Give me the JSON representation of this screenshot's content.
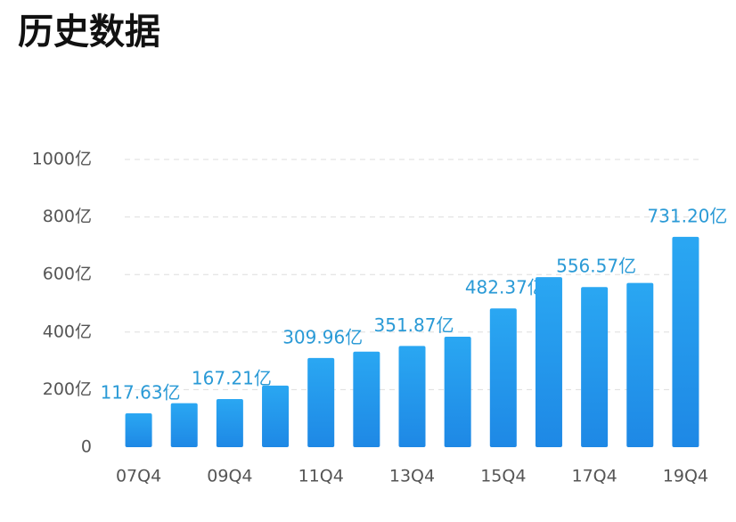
{
  "chart_data": {
    "type": "bar",
    "title": "历史数据",
    "categories": [
      "07Q4",
      null,
      "09Q4",
      null,
      "11Q4",
      null,
      "13Q4",
      null,
      "15Q4",
      null,
      "17Q4",
      null,
      "19Q4"
    ],
    "values": [
      117.63,
      153,
      167.21,
      214,
      309.96,
      332,
      351.87,
      384,
      482.37,
      591,
      556.57,
      571,
      731.2
    ],
    "value_labels": [
      "117.63亿",
      null,
      "167.21亿",
      null,
      "309.96亿",
      null,
      "351.87亿",
      null,
      "482.37亿",
      null,
      "556.57亿",
      null,
      "731.20亿"
    ],
    "color": "#2196f3",
    "ylim": [
      0,
      1000
    ],
    "yticks": [
      0,
      {
        "value": 200,
        "label": "200亿"
      },
      {
        "value": 400,
        "label": "400亿"
      },
      {
        "value": 600,
        "label": "600亿"
      },
      {
        "value": 800,
        "label": "800亿"
      },
      {
        "value": 1000,
        "label": "1000亿"
      }
    ],
    "grid": true
  }
}
